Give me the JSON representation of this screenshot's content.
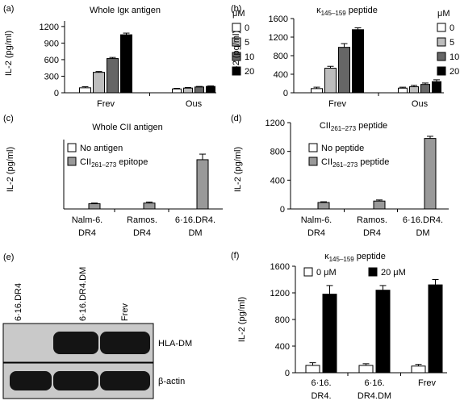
{
  "colors": {
    "black": "#000000",
    "dark_gray": "#666666",
    "light_gray": "#bdbdbd",
    "mid_gray": "#999999",
    "white": "#ffffff",
    "blot_band": "#141414",
    "blot_bg": "#c9c9c9"
  },
  "chart_data": [
    {
      "panel": "(a)",
      "type": "bar",
      "title": "Whole Igκ antigen",
      "ylabel": "IL-2 (pg/ml)",
      "ylim": [
        0,
        1300
      ],
      "yticks": [
        "0",
        "300",
        "600",
        "900",
        "1200"
      ],
      "categories": [
        "Frev",
        "Ous"
      ],
      "legend_title": "μM",
      "series": [
        {
          "name": "0",
          "values": [
            90,
            70
          ],
          "errors": [
            20,
            10
          ],
          "color": "#ffffff"
        },
        {
          "name": "5",
          "values": [
            370,
            85
          ],
          "errors": [
            15,
            10
          ],
          "color": "#bdbdbd"
        },
        {
          "name": "10",
          "values": [
            620,
            105
          ],
          "errors": [
            20,
            10
          ],
          "color": "#666666"
        },
        {
          "name": "20",
          "values": [
            1050,
            115
          ],
          "errors": [
            30,
            10
          ],
          "color": "#000000"
        }
      ]
    },
    {
      "panel": "(b)",
      "type": "bar",
      "title": "κ145–159 peptide",
      "ylabel": "IL-2 (pg/ml)",
      "ylim": [
        0,
        1600
      ],
      "yticks": [
        "0",
        "400",
        "800",
        "1200",
        "1600"
      ],
      "categories": [
        "Frev",
        "Ous"
      ],
      "legend_title": "μM",
      "series": [
        {
          "name": "0",
          "values": [
            90,
            100
          ],
          "errors": [
            30,
            20
          ],
          "color": "#ffffff"
        },
        {
          "name": "5",
          "values": [
            530,
            130
          ],
          "errors": [
            40,
            30
          ],
          "color": "#bdbdbd"
        },
        {
          "name": "10",
          "values": [
            980,
            180
          ],
          "errors": [
            80,
            30
          ],
          "color": "#666666"
        },
        {
          "name": "20",
          "values": [
            1360,
            240
          ],
          "errors": [
            40,
            40
          ],
          "color": "#000000"
        }
      ]
    },
    {
      "panel": "(c)",
      "type": "bar",
      "title": "Whole CII antigen",
      "ylabel": "IL-2 (pg/ml)",
      "ylim": [
        0,
        1000
      ],
      "yticks": [],
      "categories": [
        "Nalm-6. DR4",
        "Ramos. DR4",
        "6·16.DR4. DM"
      ],
      "series": [
        {
          "name": "No antigen",
          "values": [
            0,
            0,
            0
          ],
          "errors": [
            0,
            0,
            0
          ],
          "color": "#ffffff"
        },
        {
          "name": "CII261–273 epitope",
          "values": [
            75,
            85,
            710
          ],
          "errors": [
            10,
            15,
            80
          ],
          "color": "#999999"
        }
      ]
    },
    {
      "panel": "(d)",
      "type": "bar",
      "title": "CII261–273 peptide",
      "ylabel": "IL-2 (pg/ml)",
      "ylim": [
        0,
        1200
      ],
      "yticks": [
        "0",
        "400",
        "800",
        "1200"
      ],
      "categories": [
        "Nalm-6. DR4",
        "Ramos. DR4",
        "6·16.DR4. DM"
      ],
      "series": [
        {
          "name": "No peptide",
          "values": [
            0,
            0,
            0
          ],
          "errors": [
            0,
            0,
            0
          ],
          "color": "#ffffff"
        },
        {
          "name": "CII261–273 peptide",
          "values": [
            90,
            110,
            980
          ],
          "errors": [
            10,
            15,
            30
          ],
          "color": "#999999"
        }
      ]
    },
    {
      "panel": "(f)",
      "type": "bar",
      "title": "κ145–159 peptide",
      "ylabel": "IL-2 (pg/ml)",
      "ylim": [
        0,
        1600
      ],
      "yticks": [
        "0",
        "400",
        "800",
        "1200",
        "1600"
      ],
      "categories": [
        "6·16. DR4.",
        "6·16. DR4.DM",
        "Frev"
      ],
      "series": [
        {
          "name": "0 μM",
          "values": [
            110,
            110,
            100
          ],
          "errors": [
            40,
            25,
            25
          ],
          "color": "#ffffff"
        },
        {
          "name": "20 μM",
          "values": [
            1180,
            1240,
            1320
          ],
          "errors": [
            130,
            70,
            80
          ],
          "color": "#000000"
        }
      ]
    }
  ],
  "panel_e": {
    "label": "(e)",
    "lanes": [
      "6·16.DR4",
      "6·16.DR4.DM",
      "Frev"
    ],
    "blots": [
      {
        "label": "HLA-DM",
        "present": [
          false,
          true,
          true
        ]
      },
      {
        "label": "β-actin",
        "present": [
          true,
          true,
          true
        ]
      }
    ]
  }
}
